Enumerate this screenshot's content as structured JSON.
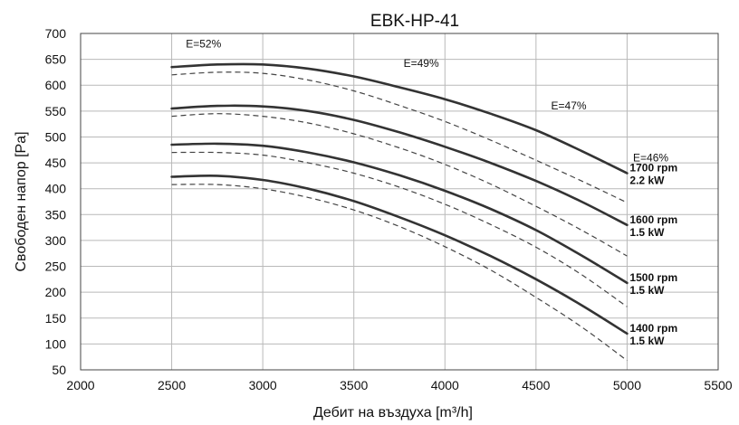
{
  "chart_data": {
    "type": "line",
    "title": "EBK-HP-41",
    "xlabel": "Дебит на въздуха [m³/h]",
    "ylabel": "Свободен напор [Pa]",
    "xlim": [
      2000,
      5500
    ],
    "ylim": [
      50,
      700
    ],
    "xticks": [
      2000,
      2500,
      3000,
      3500,
      4000,
      4500,
      5000,
      5500
    ],
    "yticks": [
      50,
      100,
      150,
      200,
      250,
      300,
      350,
      400,
      450,
      500,
      550,
      600,
      650,
      700
    ],
    "grid": true,
    "x": [
      2500,
      2750,
      3000,
      3250,
      3500,
      3750,
      4000,
      4250,
      4500,
      4750,
      5000
    ],
    "series": [
      {
        "name": "1700 rpm 2.2 kW",
        "label_lines": [
          "1700 rpm",
          "2.2 kW"
        ],
        "style": "solid",
        "values": [
          635,
          640,
          640,
          632,
          617,
          596,
          573,
          545,
          513,
          473,
          430
        ]
      },
      {
        "style": "dashed",
        "values": [
          620,
          625,
          623,
          610,
          589,
          561,
          530,
          494,
          455,
          415,
          373
        ]
      },
      {
        "name": "1600 rpm 1.5 kW",
        "label_lines": [
          "1600 rpm",
          "1.5 kW"
        ],
        "style": "solid",
        "values": [
          555,
          560,
          559,
          550,
          533,
          509,
          481,
          450,
          415,
          375,
          330
        ]
      },
      {
        "style": "dashed",
        "values": [
          540,
          545,
          540,
          527,
          506,
          479,
          447,
          409,
          366,
          320,
          270
        ]
      },
      {
        "name": "1500 rpm 1.5 kW",
        "label_lines": [
          "1500 rpm",
          "1.5 kW"
        ],
        "style": "solid",
        "values": [
          485,
          487,
          483,
          470,
          451,
          426,
          396,
          361,
          320,
          271,
          218
        ]
      },
      {
        "style": "dashed",
        "values": [
          470,
          470,
          465,
          450,
          430,
          403,
          370,
          331,
          287,
          234,
          172
        ]
      },
      {
        "name": "1400 rpm 1.5 kW",
        "label_lines": [
          "1400 rpm",
          "1.5 kW"
        ],
        "style": "solid",
        "values": [
          423,
          425,
          417,
          400,
          376,
          345,
          310,
          270,
          225,
          175,
          120
        ]
      },
      {
        "style": "dashed",
        "values": [
          408,
          408,
          400,
          383,
          359,
          327,
          288,
          243,
          190,
          133,
          68
        ]
      }
    ],
    "annotations": [
      {
        "text": "E=52%",
        "x": 2675,
        "y": 680
      },
      {
        "text": "E=49%",
        "x": 3870,
        "y": 642
      },
      {
        "text": "E=47%",
        "x": 4680,
        "y": 560
      },
      {
        "text": "E=46%",
        "x": 5130,
        "y": 460
      }
    ]
  }
}
